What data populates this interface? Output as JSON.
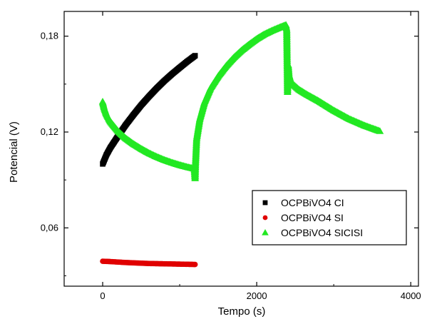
{
  "chart_data": {
    "type": "scatter",
    "title": "",
    "xlabel": "Tempo (s)",
    "ylabel": "Potencial (V)",
    "xlim": [
      -500,
      4100
    ],
    "ylim": [
      0.0235,
      0.1955
    ],
    "xticks": [
      {
        "value": 0,
        "label": "0"
      },
      {
        "value": 2000,
        "label": "2000"
      },
      {
        "value": 4000,
        "label": "4000"
      }
    ],
    "yticks": [
      {
        "value": 0.06,
        "label": "0,06"
      },
      {
        "value": 0.12,
        "label": "0,12"
      },
      {
        "value": 0.18,
        "label": "0,18"
      }
    ],
    "grid": false,
    "legend_position": "bottom-right",
    "series": [
      {
        "name": "OCPBiVO4 CI",
        "color": "#000000",
        "marker": "square",
        "x": [
          0,
          50,
          100,
          200,
          300,
          400,
          500,
          600,
          700,
          800,
          900,
          1000,
          1100,
          1200
        ],
        "y": [
          0.1,
          0.1058,
          0.1102,
          0.1175,
          0.1245,
          0.1308,
          0.1368,
          0.1422,
          0.1473,
          0.152,
          0.1563,
          0.1603,
          0.1642,
          0.1678
        ]
      },
      {
        "name": "OCPBiVO4 SI",
        "color": "#e00000",
        "marker": "circle",
        "x": [
          0,
          100,
          200,
          300,
          400,
          500,
          600,
          700,
          800,
          900,
          1000,
          1100,
          1200
        ],
        "y": [
          0.0391,
          0.0389,
          0.0386,
          0.0383,
          0.0381,
          0.0379,
          0.0377,
          0.0376,
          0.0375,
          0.0374,
          0.0373,
          0.0372,
          0.0371
        ]
      },
      {
        "name": "OCPBiVO4 SICISI",
        "color": "#22e822",
        "marker": "triangle",
        "x": [
          0,
          20,
          50,
          100,
          200,
          300,
          400,
          500,
          600,
          700,
          800,
          900,
          1000,
          1100,
          1190,
          1200,
          1205,
          1220,
          1260,
          1320,
          1400,
          1500,
          1600,
          1700,
          1800,
          1900,
          2000,
          2100,
          2200,
          2300,
          2380,
          2390,
          2400,
          2410,
          2420,
          2440,
          2480,
          2550,
          2650,
          2800,
          3000,
          3200,
          3400,
          3600
        ],
        "y": [
          0.139,
          0.135,
          0.131,
          0.1265,
          0.1205,
          0.116,
          0.1125,
          0.1095,
          0.1068,
          0.1045,
          0.1025,
          0.1008,
          0.0993,
          0.098,
          0.097,
          0.091,
          0.1,
          0.116,
          0.128,
          0.1385,
          0.1475,
          0.155,
          0.1612,
          0.1665,
          0.171,
          0.1748,
          0.1783,
          0.1812,
          0.1835,
          0.1855,
          0.187,
          0.184,
          0.145,
          0.162,
          0.156,
          0.1525,
          0.1495,
          0.1465,
          0.1435,
          0.1395,
          0.1335,
          0.1282,
          0.124,
          0.1205
        ]
      }
    ]
  }
}
